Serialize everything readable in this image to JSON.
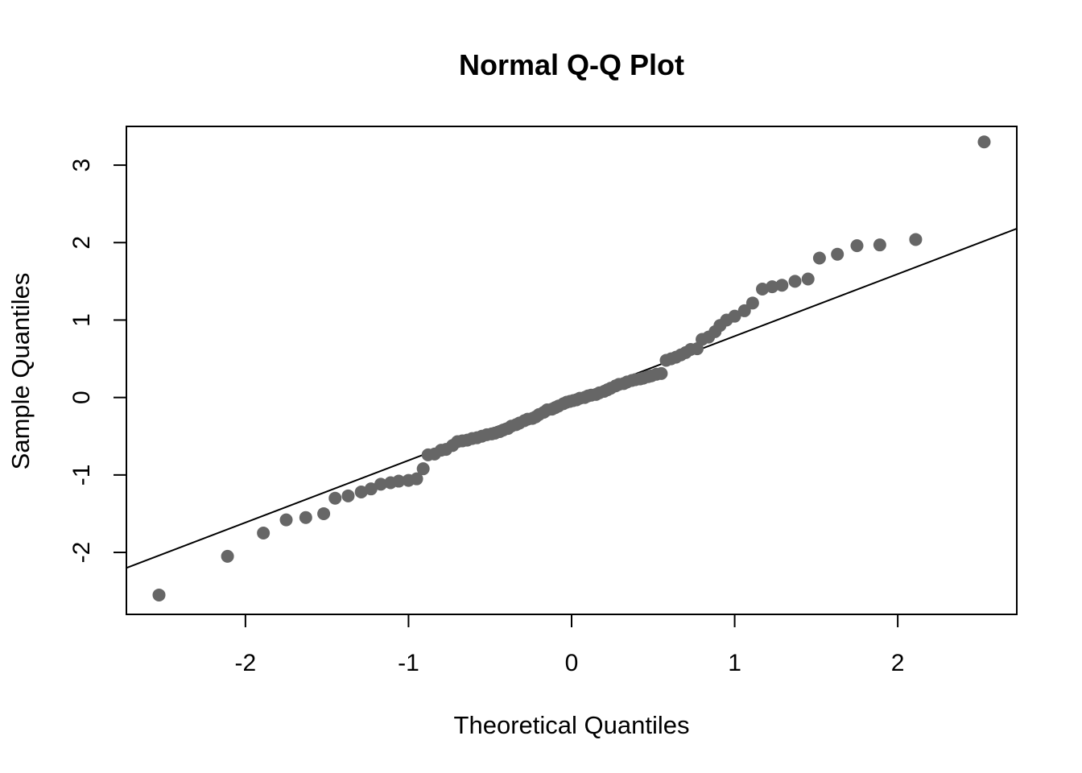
{
  "chart_data": {
    "type": "scatter",
    "title": "Normal Q-Q Plot",
    "xlabel": "Theoretical Quantiles",
    "ylabel": "Sample Quantiles",
    "xlim": [
      -2.73,
      2.73
    ],
    "ylim": [
      -2.8,
      3.5
    ],
    "x_ticks": [
      -2,
      -1,
      0,
      1,
      2
    ],
    "x_tick_labels": [
      "-2",
      "-1",
      "0",
      "1",
      "2"
    ],
    "y_ticks": [
      -2,
      -1,
      0,
      1,
      2,
      3
    ],
    "y_tick_labels": [
      "-2",
      "-1",
      "0",
      "1",
      "2",
      "3"
    ],
    "grid": false,
    "point_color": "#666666",
    "line_color": "#000000",
    "reference_line": {
      "x": [
        -2.73,
        2.73
      ],
      "y": [
        -2.2,
        2.18
      ]
    },
    "x": [
      -2.53,
      -2.11,
      -1.89,
      -1.75,
      -1.63,
      -1.52,
      -1.45,
      -1.37,
      -1.29,
      -1.23,
      -1.17,
      -1.11,
      -1.06,
      -1.0,
      -0.95,
      -0.91,
      -0.88,
      -0.84,
      -0.8,
      -0.77,
      -0.73,
      -0.7,
      -0.67,
      -0.64,
      -0.61,
      -0.58,
      -0.55,
      -0.52,
      -0.49,
      -0.47,
      -0.44,
      -0.42,
      -0.39,
      -0.37,
      -0.34,
      -0.32,
      -0.29,
      -0.27,
      -0.24,
      -0.22,
      -0.2,
      -0.17,
      -0.15,
      -0.12,
      -0.1,
      -0.08,
      -0.05,
      -0.03,
      -0.01,
      0.01,
      0.03,
      0.05,
      0.08,
      0.1,
      0.12,
      0.15,
      0.17,
      0.2,
      0.22,
      0.24,
      0.27,
      0.29,
      0.32,
      0.34,
      0.37,
      0.39,
      0.42,
      0.44,
      0.47,
      0.49,
      0.52,
      0.55,
      0.58,
      0.61,
      0.64,
      0.67,
      0.7,
      0.73,
      0.77,
      0.8,
      0.84,
      0.88,
      0.91,
      0.95,
      1.0,
      1.06,
      1.11,
      1.17,
      1.23,
      1.29,
      1.37,
      1.45,
      1.52,
      1.63,
      1.75,
      1.89,
      2.11,
      2.53
    ],
    "y": [
      -2.55,
      -2.05,
      -1.75,
      -1.58,
      -1.55,
      -1.5,
      -1.3,
      -1.27,
      -1.22,
      -1.18,
      -1.12,
      -1.1,
      -1.08,
      -1.07,
      -1.05,
      -0.92,
      -0.74,
      -0.73,
      -0.68,
      -0.67,
      -0.62,
      -0.57,
      -0.56,
      -0.55,
      -0.53,
      -0.52,
      -0.5,
      -0.48,
      -0.47,
      -0.46,
      -0.44,
      -0.42,
      -0.4,
      -0.37,
      -0.35,
      -0.33,
      -0.3,
      -0.28,
      -0.27,
      -0.25,
      -0.22,
      -0.19,
      -0.16,
      -0.15,
      -0.13,
      -0.11,
      -0.08,
      -0.06,
      -0.05,
      -0.04,
      -0.03,
      -0.01,
      0.0,
      0.02,
      0.03,
      0.04,
      0.06,
      0.08,
      0.1,
      0.12,
      0.15,
      0.17,
      0.18,
      0.2,
      0.22,
      0.23,
      0.24,
      0.25,
      0.27,
      0.28,
      0.3,
      0.31,
      0.48,
      0.5,
      0.52,
      0.55,
      0.58,
      0.62,
      0.63,
      0.75,
      0.78,
      0.85,
      0.93,
      1.0,
      1.05,
      1.12,
      1.22,
      1.4,
      1.43,
      1.45,
      1.5,
      1.53,
      1.8,
      1.85,
      1.96,
      1.97,
      2.04,
      3.3
    ]
  }
}
